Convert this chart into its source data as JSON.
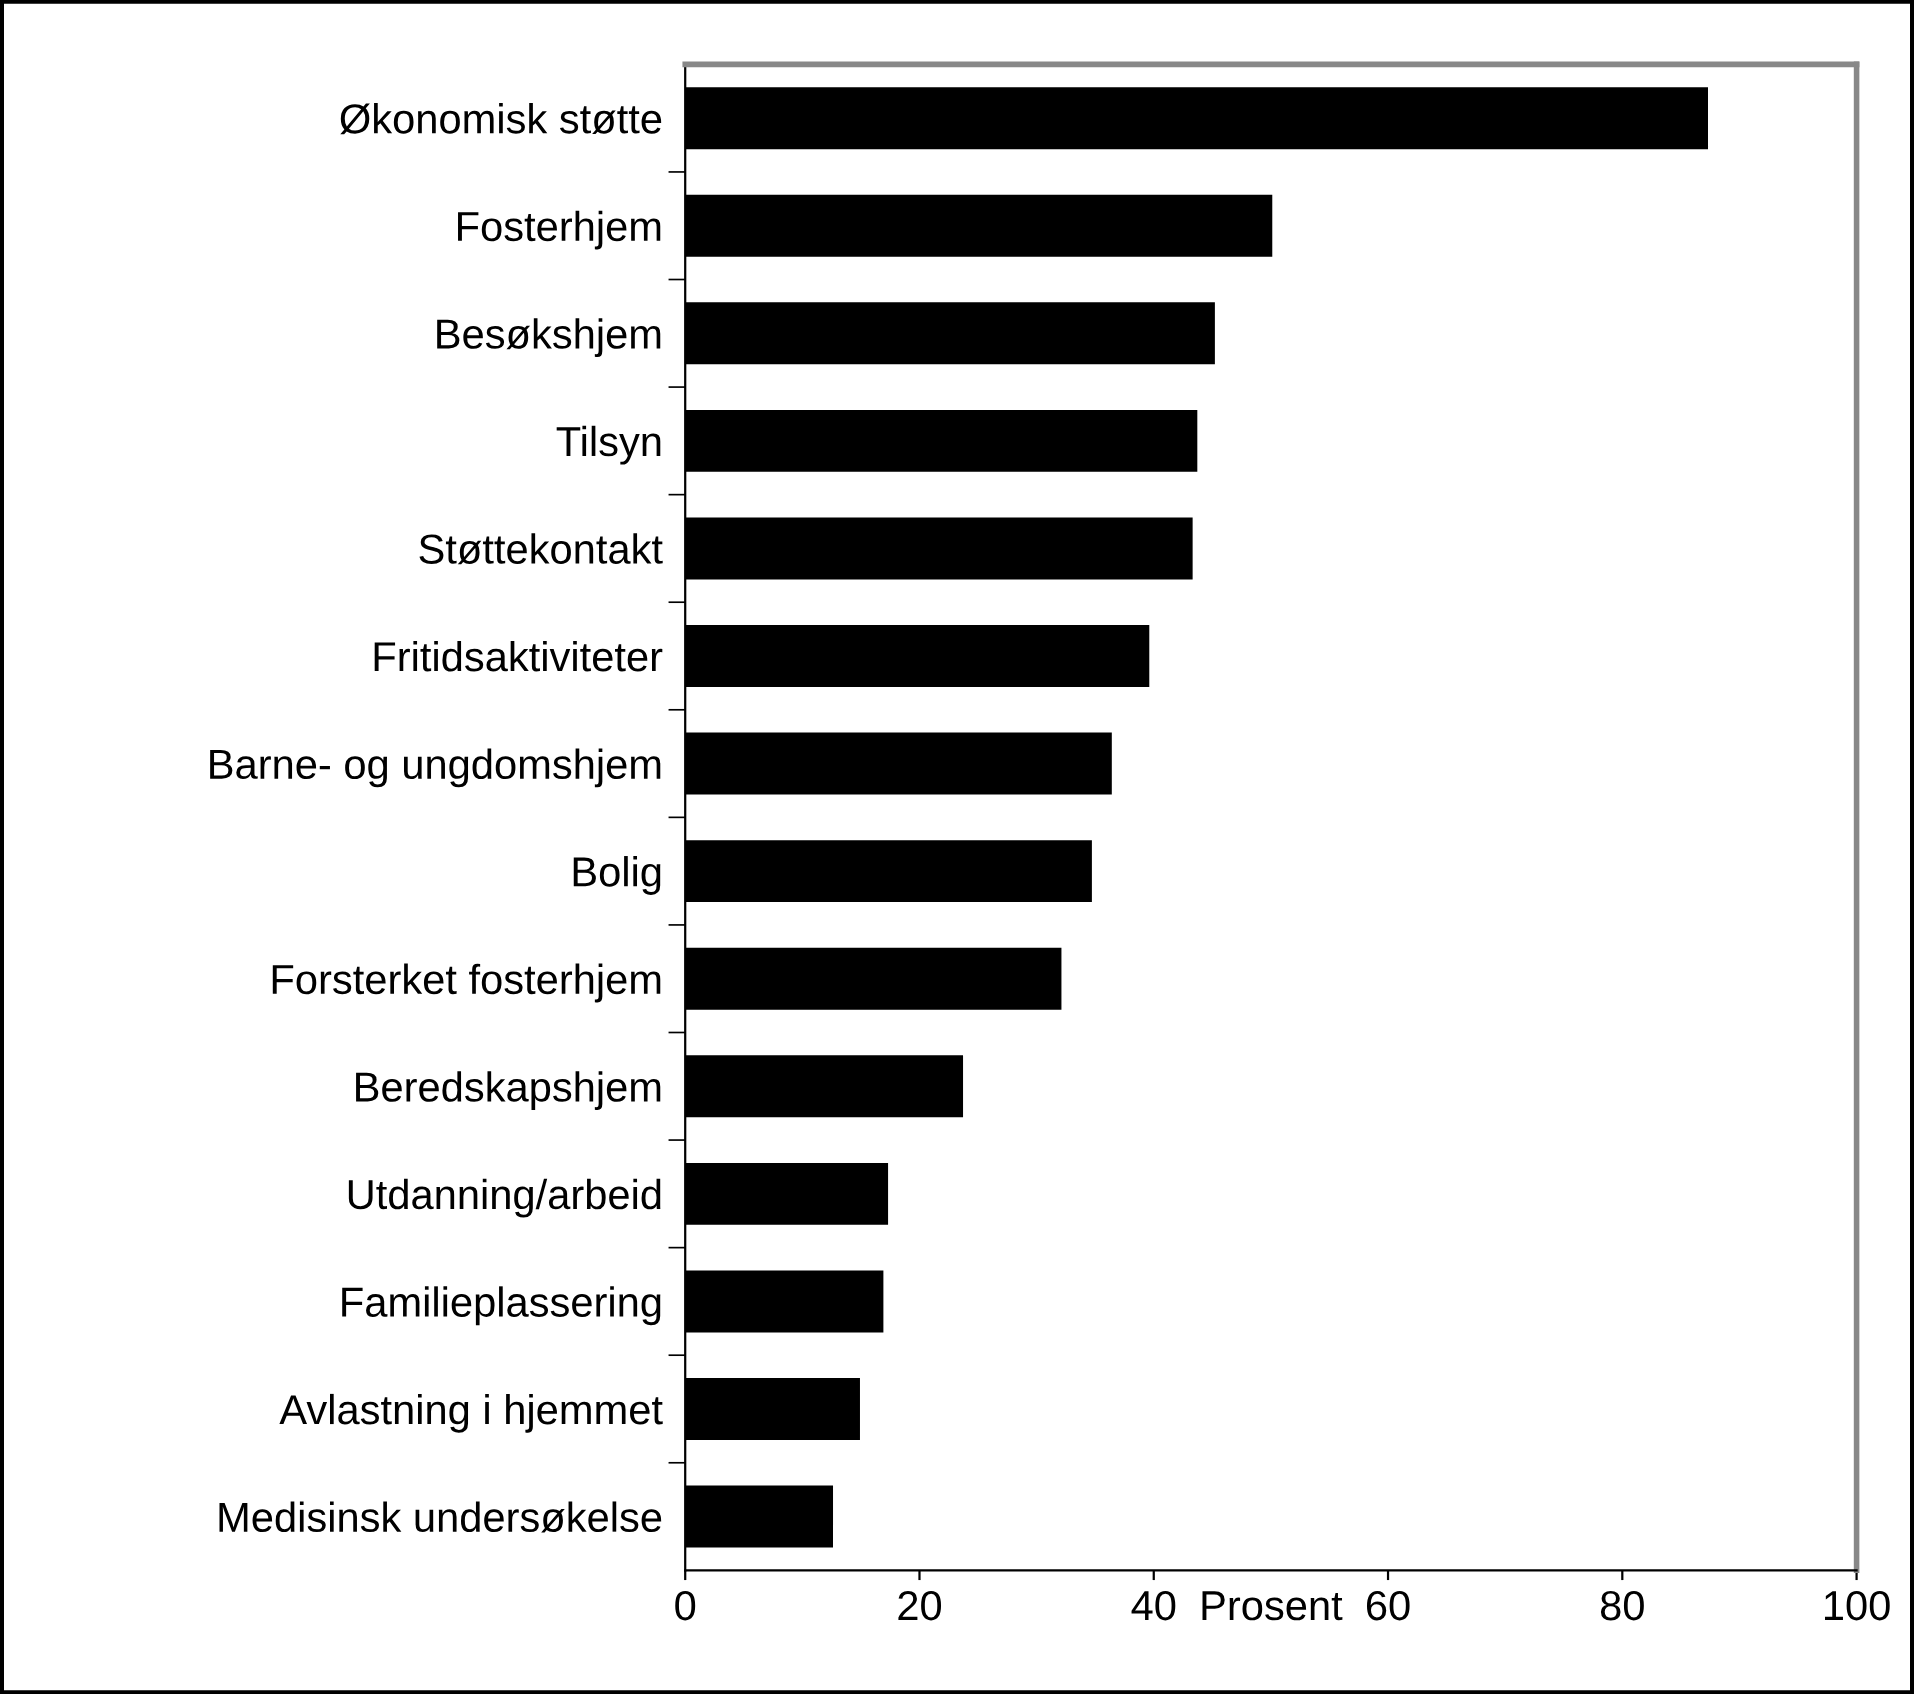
{
  "chart_data": {
    "type": "bar",
    "orientation": "horizontal",
    "xlabel": "Prosent",
    "categories": [
      "Økonomisk støtte",
      "Fosterhjem",
      "Besøkshjem",
      "Tilsyn",
      "Støttekontakt",
      "Fritidsaktiviteter",
      "Barne- og ungdomshjem",
      "Bolig",
      "Forsterket fosterhjem",
      "Beredskapshjem",
      "Utdanning/arbeid",
      "Familieplassering",
      "Avlastning i hjemmet",
      "Medisinsk undersøkelse"
    ],
    "values": [
      87.2,
      50.0,
      45.1,
      43.6,
      43.2,
      39.5,
      36.3,
      34.6,
      32.0,
      23.6,
      17.2,
      16.8,
      14.8,
      12.5
    ],
    "color": "#000000",
    "xlim": [
      0,
      100
    ],
    "xticks": [
      0,
      20,
      40,
      60,
      80,
      100
    ],
    "grid": false,
    "legend": false
  }
}
